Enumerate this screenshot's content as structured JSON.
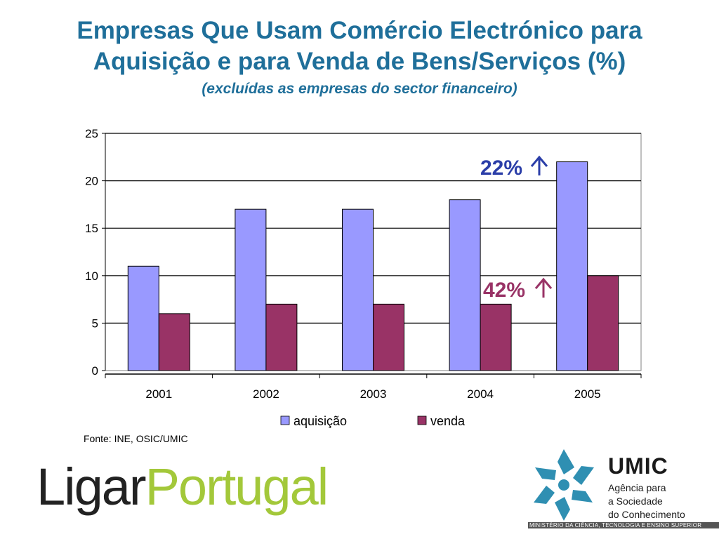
{
  "title": {
    "line1": "Empresas Que Usam Comércio Electrónico para",
    "line2": "Aquisição e para Venda de Bens/Serviços (%)",
    "subtitle": "(excluídas as empresas do sector financeiro)"
  },
  "chart_data": {
    "type": "bar",
    "categories": [
      "2001",
      "2002",
      "2003",
      "2004",
      "2005"
    ],
    "series": [
      {
        "name": "aquisição",
        "values": [
          11,
          17,
          17,
          18,
          22
        ],
        "color": "#9999ff"
      },
      {
        "name": "venda",
        "values": [
          6,
          7,
          7,
          7,
          10
        ],
        "color": "#993366"
      }
    ],
    "ylim": [
      0,
      25
    ],
    "yticks": [
      0,
      5,
      10,
      15,
      20,
      25
    ],
    "grid": true,
    "legend": "bottom",
    "annotations": [
      {
        "text": "22%",
        "arrow": "up",
        "color": "#2b3ea8",
        "near": "aquisição 2005"
      },
      {
        "text": "42%",
        "arrow": "up",
        "color": "#993366",
        "near": "venda 2005"
      }
    ]
  },
  "source": "Fonte: INE, OSIC/UMIC",
  "logos": {
    "ligar": "Ligar",
    "portugal": "Portugal",
    "umic_name": "UMIC",
    "umic_tagline": [
      "Agência para",
      "a Sociedade",
      "do Conhecimento"
    ],
    "ministry": "MINISTÉRIO DA CIÊNCIA, TECNOLOGIA E ENSINO SUPERIOR"
  }
}
